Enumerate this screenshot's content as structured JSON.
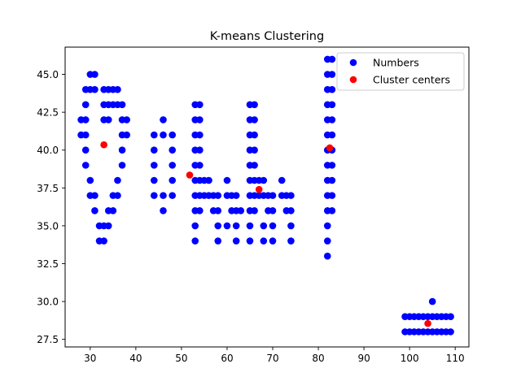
{
  "chart_data": {
    "type": "scatter",
    "title": "K-means Clustering",
    "xlabel": "",
    "ylabel": "",
    "xlim": [
      24.5,
      113
    ],
    "ylim": [
      27.0,
      46.8
    ],
    "xticks": [
      30,
      40,
      50,
      60,
      70,
      80,
      90,
      100,
      110
    ],
    "yticks": [
      27.5,
      30.0,
      32.5,
      35.0,
      37.5,
      40.0,
      42.5,
      45.0
    ],
    "grid": false,
    "legend_position": "top-right",
    "colors": {
      "numbers": "#0000ff",
      "centers": "#ff0000"
    },
    "series": [
      {
        "name": "Numbers",
        "color": "#0000ff",
        "points": [
          [
            28,
            42
          ],
          [
            28,
            41
          ],
          [
            29,
            44
          ],
          [
            29,
            43
          ],
          [
            29,
            42
          ],
          [
            29,
            41
          ],
          [
            29,
            40
          ],
          [
            29,
            39
          ],
          [
            30,
            45
          ],
          [
            30,
            44
          ],
          [
            30,
            38
          ],
          [
            30,
            37
          ],
          [
            31,
            45
          ],
          [
            31,
            44
          ],
          [
            31,
            37
          ],
          [
            31,
            36
          ],
          [
            32,
            35
          ],
          [
            32,
            34
          ],
          [
            33,
            44
          ],
          [
            33,
            43
          ],
          [
            33,
            42
          ],
          [
            33,
            35
          ],
          [
            33,
            34
          ],
          [
            34,
            44
          ],
          [
            34,
            43
          ],
          [
            34,
            42
          ],
          [
            34,
            36
          ],
          [
            34,
            35
          ],
          [
            35,
            44
          ],
          [
            35,
            43
          ],
          [
            35,
            37
          ],
          [
            35,
            36
          ],
          [
            36,
            44
          ],
          [
            36,
            43
          ],
          [
            36,
            38
          ],
          [
            36,
            37
          ],
          [
            37,
            43
          ],
          [
            37,
            42
          ],
          [
            37,
            41
          ],
          [
            37,
            40
          ],
          [
            37,
            39
          ],
          [
            38,
            42
          ],
          [
            38,
            41
          ],
          [
            44,
            41
          ],
          [
            44,
            40
          ],
          [
            44,
            39
          ],
          [
            44,
            38
          ],
          [
            44,
            37
          ],
          [
            46,
            42
          ],
          [
            46,
            41
          ],
          [
            46,
            37
          ],
          [
            46,
            36
          ],
          [
            48,
            41
          ],
          [
            48,
            40
          ],
          [
            48,
            39
          ],
          [
            48,
            38
          ],
          [
            48,
            37
          ],
          [
            53,
            43
          ],
          [
            53,
            42
          ],
          [
            53,
            41
          ],
          [
            53,
            40
          ],
          [
            53,
            39
          ],
          [
            53,
            38
          ],
          [
            53,
            37
          ],
          [
            53,
            36
          ],
          [
            53,
            35
          ],
          [
            53,
            34
          ],
          [
            54,
            43
          ],
          [
            54,
            42
          ],
          [
            54,
            41
          ],
          [
            54,
            40
          ],
          [
            54,
            39
          ],
          [
            54,
            38
          ],
          [
            54,
            37
          ],
          [
            54,
            36
          ],
          [
            55,
            38
          ],
          [
            55,
            37
          ],
          [
            56,
            38
          ],
          [
            56,
            37
          ],
          [
            57,
            37
          ],
          [
            57,
            36
          ],
          [
            58,
            37
          ],
          [
            58,
            36
          ],
          [
            58,
            35
          ],
          [
            58,
            34
          ],
          [
            60,
            38
          ],
          [
            60,
            37
          ],
          [
            60,
            35
          ],
          [
            61,
            37
          ],
          [
            61,
            36
          ],
          [
            62,
            37
          ],
          [
            62,
            36
          ],
          [
            62,
            35
          ],
          [
            62,
            34
          ],
          [
            63,
            36
          ],
          [
            65,
            43
          ],
          [
            65,
            42
          ],
          [
            65,
            41
          ],
          [
            65,
            40
          ],
          [
            65,
            39
          ],
          [
            65,
            38
          ],
          [
            65,
            37
          ],
          [
            65,
            36
          ],
          [
            65,
            35
          ],
          [
            65,
            34
          ],
          [
            66,
            43
          ],
          [
            66,
            42
          ],
          [
            66,
            41
          ],
          [
            66,
            40
          ],
          [
            66,
            39
          ],
          [
            66,
            38
          ],
          [
            66,
            37
          ],
          [
            66,
            36
          ],
          [
            67,
            38
          ],
          [
            67,
            37
          ],
          [
            68,
            38
          ],
          [
            68,
            37
          ],
          [
            68,
            35
          ],
          [
            68,
            34
          ],
          [
            69,
            37
          ],
          [
            69,
            36
          ],
          [
            70,
            37
          ],
          [
            70,
            36
          ],
          [
            70,
            35
          ],
          [
            70,
            34
          ],
          [
            72,
            38
          ],
          [
            72,
            37
          ],
          [
            73,
            37
          ],
          [
            73,
            36
          ],
          [
            74,
            37
          ],
          [
            74,
            36
          ],
          [
            74,
            35
          ],
          [
            74,
            34
          ],
          [
            82,
            46
          ],
          [
            82,
            45
          ],
          [
            82,
            44
          ],
          [
            82,
            43
          ],
          [
            82,
            42
          ],
          [
            82,
            41
          ],
          [
            82,
            40
          ],
          [
            82,
            39
          ],
          [
            82,
            38
          ],
          [
            82,
            37
          ],
          [
            82,
            36
          ],
          [
            82,
            35
          ],
          [
            82,
            34
          ],
          [
            82,
            33
          ],
          [
            83,
            46
          ],
          [
            83,
            45
          ],
          [
            83,
            44
          ],
          [
            83,
            43
          ],
          [
            83,
            42
          ],
          [
            83,
            41
          ],
          [
            83,
            40
          ],
          [
            83,
            39
          ],
          [
            83,
            38
          ],
          [
            83,
            37
          ],
          [
            83,
            36
          ],
          [
            99,
            29
          ],
          [
            99,
            28
          ],
          [
            100,
            29
          ],
          [
            100,
            28
          ],
          [
            101,
            29
          ],
          [
            101,
            28
          ],
          [
            102,
            29
          ],
          [
            102,
            28
          ],
          [
            103,
            29
          ],
          [
            103,
            28
          ],
          [
            104,
            29
          ],
          [
            104,
            28
          ],
          [
            105,
            30
          ],
          [
            105,
            29
          ],
          [
            105,
            28
          ],
          [
            106,
            29
          ],
          [
            106,
            28
          ],
          [
            107,
            29
          ],
          [
            107,
            28
          ],
          [
            108,
            29
          ],
          [
            108,
            28
          ],
          [
            109,
            29
          ],
          [
            109,
            28
          ]
        ]
      },
      {
        "name": "Cluster centers",
        "color": "#ff0000",
        "points": [
          [
            33,
            40.35
          ],
          [
            51.8,
            38.35
          ],
          [
            67,
            37.4
          ],
          [
            82.5,
            40.15
          ],
          [
            104,
            28.55
          ]
        ]
      }
    ]
  }
}
